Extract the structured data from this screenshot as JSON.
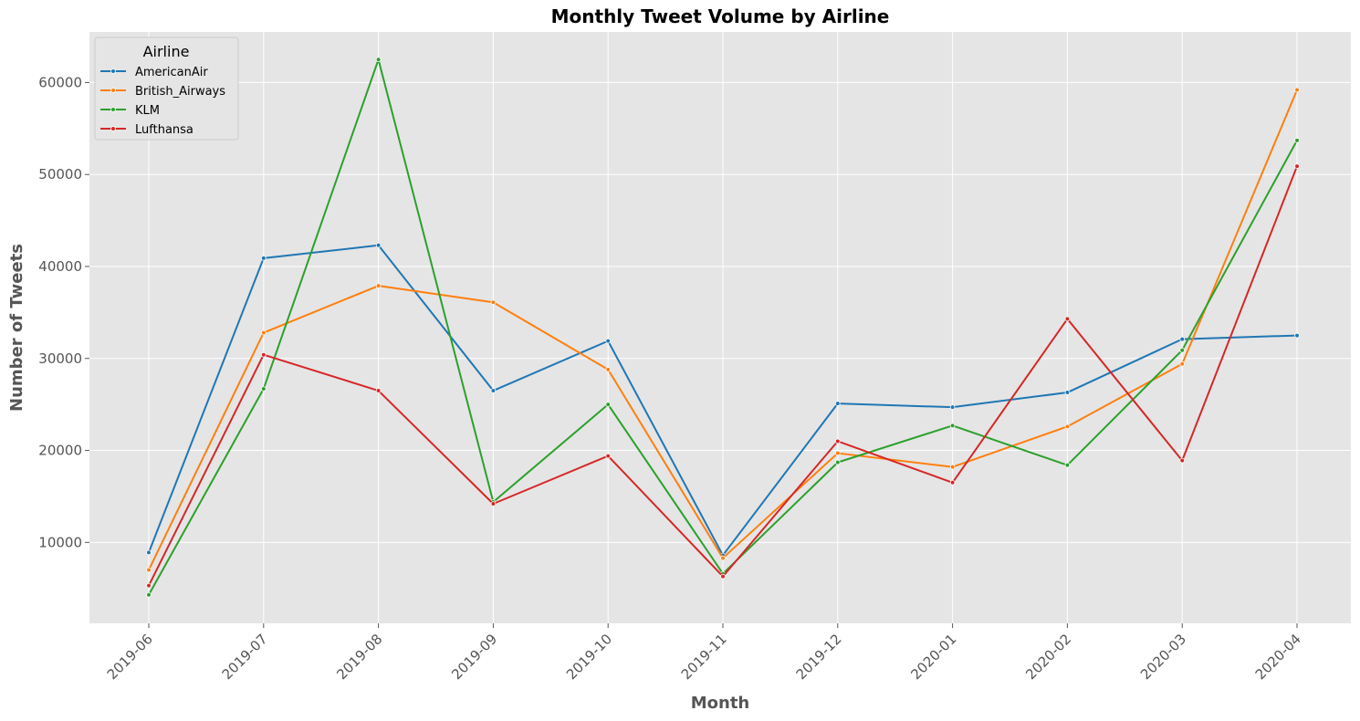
{
  "chart_data": {
    "type": "line",
    "title": "Monthly Tweet Volume by Airline",
    "xlabel": "Month",
    "ylabel": "Number of Tweets",
    "categories": [
      "2019-06",
      "2019-07",
      "2019-08",
      "2019-09",
      "2019-10",
      "2019-11",
      "2019-12",
      "2020-01",
      "2020-02",
      "2020-03",
      "2020-04"
    ],
    "yticks": [
      10000,
      20000,
      30000,
      40000,
      50000,
      60000
    ],
    "ylim": [
      1200,
      65500
    ],
    "grid": true,
    "legend": {
      "title": "Airline",
      "placement": "top-left"
    },
    "series": [
      {
        "name": "AmericanAir",
        "color": "#1f77b4",
        "values": [
          8900,
          40900,
          42300,
          26500,
          31900,
          8600,
          25100,
          24700,
          26300,
          32100,
          32500
        ]
      },
      {
        "name": "British_Airways",
        "color": "#ff7f0e",
        "values": [
          7000,
          32800,
          37900,
          36100,
          28800,
          8300,
          19700,
          18200,
          22600,
          29400,
          59200
        ]
      },
      {
        "name": "KLM",
        "color": "#2ca02c",
        "values": [
          4300,
          26700,
          62500,
          14400,
          25000,
          6600,
          18700,
          22700,
          18400,
          30900,
          53700
        ]
      },
      {
        "name": "Lufthansa",
        "color": "#d62728",
        "values": [
          5300,
          30400,
          26500,
          14200,
          19400,
          6300,
          21000,
          16500,
          34300,
          18900,
          50900
        ]
      }
    ]
  }
}
